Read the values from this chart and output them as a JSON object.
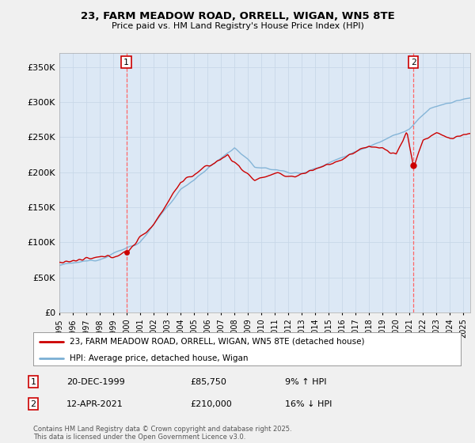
{
  "title_line1": "23, FARM MEADOW ROAD, ORRELL, WIGAN, WN5 8TE",
  "title_line2": "Price paid vs. HM Land Registry's House Price Index (HPI)",
  "ylabel_ticks": [
    "£0",
    "£50K",
    "£100K",
    "£150K",
    "£200K",
    "£250K",
    "£300K",
    "£350K"
  ],
  "ytick_values": [
    0,
    50000,
    100000,
    150000,
    200000,
    250000,
    300000,
    350000
  ],
  "ylim": [
    0,
    370000
  ],
  "hpi_color": "#7bafd4",
  "price_color": "#cc0000",
  "background_color": "#f0f0f0",
  "plot_bg_color": "#dce8f5",
  "legend_label_red": "23, FARM MEADOW ROAD, ORRELL, WIGAN, WN5 8TE (detached house)",
  "legend_label_blue": "HPI: Average price, detached house, Wigan",
  "marker1_label": "1",
  "marker1_date": "20-DEC-1999",
  "marker1_price": "£85,750",
  "marker1_hpi": "9% ↑ HPI",
  "marker1_x": 1999.97,
  "marker1_y": 85750,
  "marker2_label": "2",
  "marker2_date": "12-APR-2021",
  "marker2_price": "£210,000",
  "marker2_hpi": "16% ↓ HPI",
  "marker2_x": 2021.28,
  "marker2_y": 210000,
  "footer": "Contains HM Land Registry data © Crown copyright and database right 2025.\nThis data is licensed under the Open Government Licence v3.0.",
  "xmin": 1995.0,
  "xmax": 2025.5,
  "grid_color": "#c8d8e8",
  "vline_color": "#ff6666"
}
